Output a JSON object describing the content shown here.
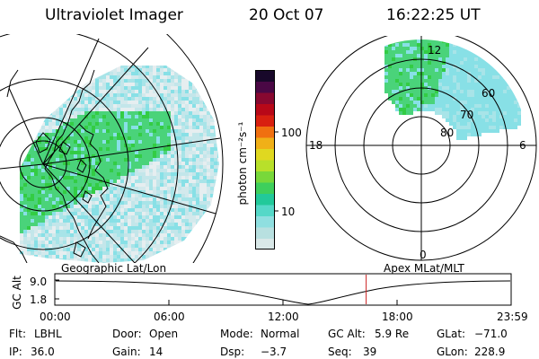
{
  "header": {
    "instrument": "Ultraviolet Imager",
    "date": "20 Oct 07",
    "time": "16:22:25 UT"
  },
  "colorbar": {
    "unit_label": "photon cm⁻²s⁻¹",
    "ticks": [
      "100",
      "10"
    ],
    "colors": [
      "#d9e8e8",
      "#b8e0e0",
      "#8fdfe0",
      "#55d8c8",
      "#22c99a",
      "#3ecf5c",
      "#78d83a",
      "#b8e02a",
      "#e0d820",
      "#f0b018",
      "#f07010",
      "#d82010",
      "#b80818",
      "#880830",
      "#4a0845",
      "#18082a"
    ]
  },
  "geo_panel": {
    "label": "Geographic Lat/Lon",
    "colors": {
      "cyan": "#88e0e6",
      "green": "#4ad37a",
      "bright_green": "#33cc44",
      "land": "#3a8a8a"
    }
  },
  "polar_panel": {
    "label": "Apex MLat/MLT",
    "lat_labels": [
      "80",
      "70",
      "60"
    ],
    "mlt_labels": [
      "12",
      "18",
      "6",
      "0"
    ]
  },
  "timeline": {
    "ylabel": "GC Alt",
    "y_ticks": [
      "9.0",
      "1.8"
    ],
    "x_ticks": [
      "00:00",
      "06:00",
      "12:00",
      "18:00",
      "23:59"
    ],
    "current_time_fraction": 0.683,
    "marker_color": "#cc2222"
  },
  "info": {
    "row1": [
      {
        "label": "Flt:",
        "value": "LBHL"
      },
      {
        "label": "Door:",
        "value": "Open"
      },
      {
        "label": "Mode:",
        "value": "Normal"
      },
      {
        "label": "GC Alt:",
        "value": "5.9 Re"
      },
      {
        "label": "GLat:",
        "value": "−71.0"
      }
    ],
    "row2": [
      {
        "label": "IP:",
        "value": "36.0"
      },
      {
        "label": "Gain:",
        "value": "14"
      },
      {
        "label": "Dsp:",
        "value": "−3.7"
      },
      {
        "label": "Seq:",
        "value": "39"
      },
      {
        "label": "GLon:",
        "value": "228.9"
      }
    ]
  }
}
